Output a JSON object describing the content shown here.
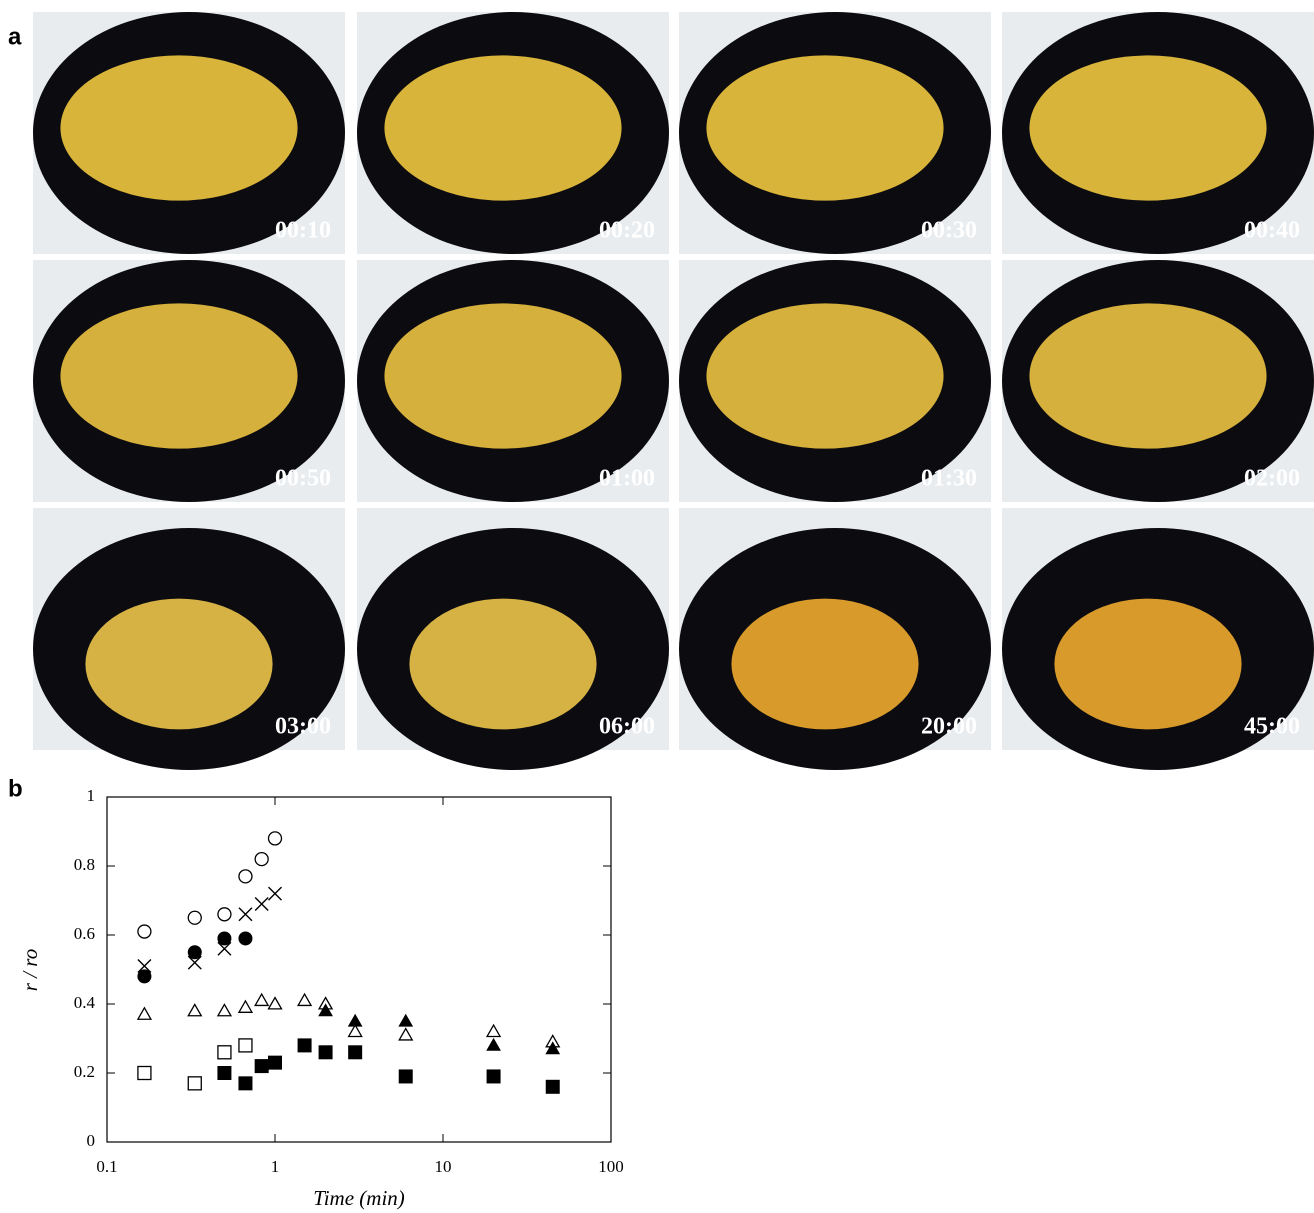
{
  "panel_a": {
    "label": "a",
    "photos": [
      "00:10",
      "00:20",
      "00:30",
      "00:40",
      "00:50",
      "01:00",
      "01:30",
      "02:00",
      "03:00",
      "06:00",
      "20:00",
      "45:00"
    ]
  },
  "chart_data": {
    "type": "scatter",
    "panel_label": "b",
    "x_label": "Time (min)",
    "y_label": "r / ro",
    "xlim": [
      0.1,
      100
    ],
    "xticks": [
      0.1,
      1,
      10,
      100
    ],
    "log_x": true,
    "ylim": [
      0,
      1
    ],
    "yticks": [
      0,
      0.2,
      0.4,
      0.6,
      0.8,
      1
    ],
    "grid": false,
    "series": [
      {
        "marker": "open-circle",
        "color": "#000",
        "x": [
          0.167,
          0.333,
          0.5,
          0.667,
          0.833,
          1
        ],
        "values": [
          0.61,
          0.65,
          0.66,
          0.77,
          0.82,
          0.88
        ]
      },
      {
        "marker": "cross",
        "color": "#000",
        "x": [
          0.167,
          0.333,
          0.5,
          0.667,
          0.833,
          1
        ],
        "values": [
          0.51,
          0.52,
          0.56,
          0.66,
          0.69,
          0.72
        ]
      },
      {
        "marker": "filled-circle",
        "color": "#000",
        "x": [
          0.167,
          0.333,
          0.5,
          0.667
        ],
        "values": [
          0.48,
          0.55,
          0.59,
          0.59
        ]
      },
      {
        "marker": "open-triangle",
        "color": "#000",
        "x": [
          0.167,
          0.333,
          0.5,
          0.667,
          0.833,
          1,
          1.5,
          2,
          3,
          6,
          20,
          45
        ],
        "values": [
          0.37,
          0.38,
          0.38,
          0.39,
          0.41,
          0.4,
          0.41,
          0.4,
          0.32,
          0.31,
          0.32,
          0.29
        ]
      },
      {
        "marker": "filled-triangle",
        "color": "#000",
        "x": [
          2,
          3,
          6,
          20,
          45
        ],
        "values": [
          0.38,
          0.35,
          0.35,
          0.28,
          0.27
        ]
      },
      {
        "marker": "open-square",
        "color": "#000",
        "x": [
          0.167,
          0.333,
          0.5,
          0.667
        ],
        "values": [
          0.2,
          0.17,
          0.26,
          0.28
        ]
      },
      {
        "marker": "filled-square",
        "color": "#000",
        "x": [
          0.5,
          0.667,
          0.833,
          1,
          1.5,
          2,
          3,
          6,
          20,
          45
        ],
        "values": [
          0.2,
          0.17,
          0.22,
          0.23,
          0.28,
          0.26,
          0.26,
          0.19,
          0.19,
          0.16
        ]
      }
    ]
  }
}
